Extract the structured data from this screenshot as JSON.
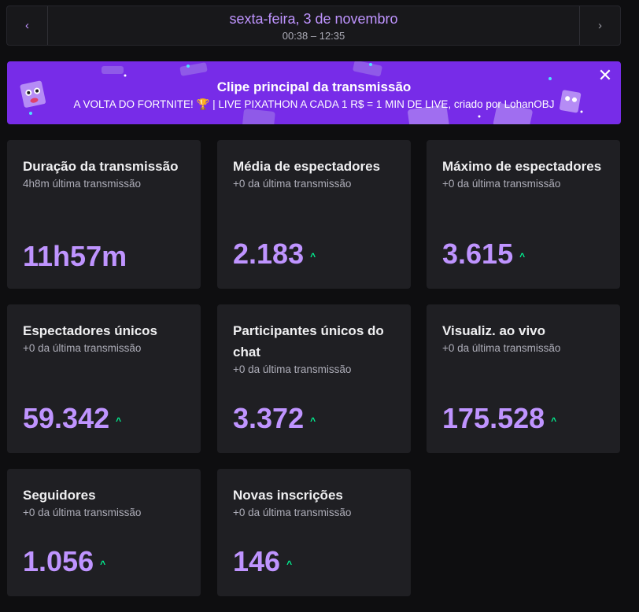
{
  "header": {
    "date": "sexta-feira, 3 de novembro",
    "time_range": "00:38 – 12:35",
    "prev_icon": "‹",
    "next_icon": "›"
  },
  "banner": {
    "title": "Clipe principal da transmissão",
    "subtitle_before": "A VOLTA DO FORTNITE! ",
    "trophy": "🏆",
    "subtitle_after": " | LIVE PIXATHON A CADA 1 R$ = 1 MIN DE LIVE, criado por LohanOBJ",
    "close_icon": "✕"
  },
  "stats": [
    {
      "title": "Duração da transmissão",
      "sub": "4h8m última transmissão",
      "value": "11h57m",
      "trend": ""
    },
    {
      "title": "Média de espectadores",
      "sub": "+0 da última transmissão",
      "value": "2.183",
      "trend": "^"
    },
    {
      "title": "Máximo de espectadores",
      "sub": "+0 da última transmissão",
      "value": "3.615",
      "trend": "^"
    },
    {
      "title": "Espectadores únicos",
      "sub": "+0 da última transmissão",
      "value": "59.342",
      "trend": "^"
    },
    {
      "title": "Participantes únicos do chat",
      "sub": "+0 da última transmissão",
      "value": "3.372",
      "trend": "^"
    },
    {
      "title": "Visualiz. ao vivo",
      "sub": "+0 da última transmissão",
      "value": "175.528",
      "trend": "^"
    },
    {
      "title": "Seguidores",
      "sub": "+0 da última transmissão",
      "value": "1.056",
      "trend": "^"
    },
    {
      "title": "Novas inscrições",
      "sub": "+0 da última transmissão",
      "value": "146",
      "trend": "^"
    }
  ],
  "colors": {
    "accent": "#bf94ff",
    "banner": "#772ce8",
    "trend_up": "#00f593"
  }
}
